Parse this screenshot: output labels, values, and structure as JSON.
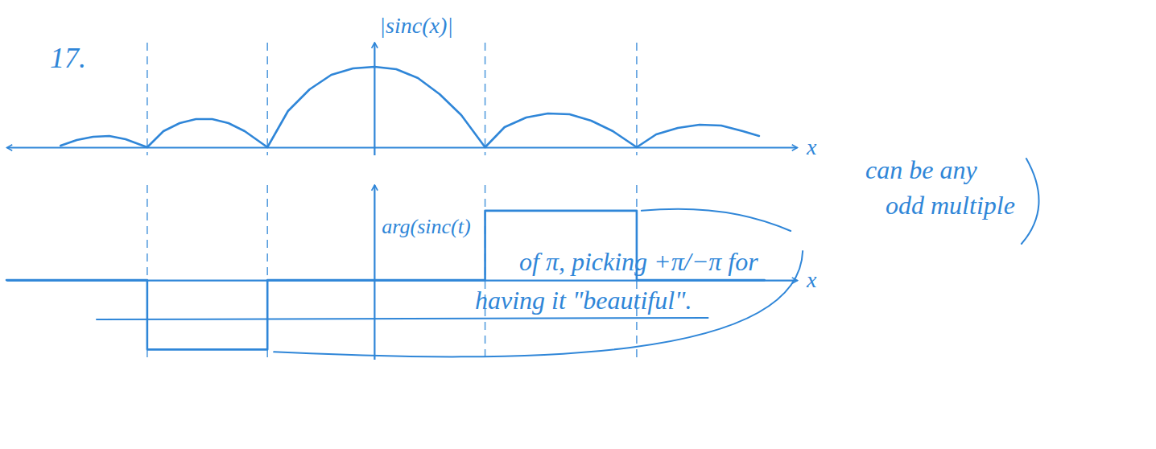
{
  "chart_data": [
    {
      "type": "line",
      "y_label": "|sinc(x)|",
      "x_label": "x",
      "annotations": [
        "17."
      ],
      "x": [
        -2.9,
        -2.75,
        -2.6,
        -2.45,
        -2.3,
        -2.1,
        -1.95,
        -1.8,
        -1.65,
        -1.5,
        -1.35,
        -1.2,
        -0.99,
        -0.8,
        -0.6,
        -0.4,
        -0.2,
        0,
        0.2,
        0.4,
        0.6,
        0.8,
        1.02,
        1.2,
        1.4,
        1.6,
        1.8,
        2.0,
        2.2,
        2.42,
        2.6,
        2.8,
        3.0,
        3.2,
        3.4,
        3.55
      ],
      "values": [
        0.02,
        0.09,
        0.13,
        0.14,
        0.1,
        0,
        0.2,
        0.3,
        0.35,
        0.35,
        0.3,
        0.2,
        0,
        0.45,
        0.72,
        0.9,
        0.98,
        1.0,
        0.97,
        0.86,
        0.66,
        0.4,
        0,
        0.25,
        0.37,
        0.42,
        0.41,
        0.33,
        0.2,
        0,
        0.16,
        0.24,
        0.28,
        0.27,
        0.2,
        0.14
      ],
      "vlines": [
        -2.1,
        -0.99,
        1.02,
        2.42
      ],
      "xlim": [
        -3.4,
        3.9
      ],
      "ylim": [
        -0.1,
        1.3
      ],
      "xticks": [],
      "yticks": [],
      "tick_labels": false,
      "line_style": "solid",
      "color": "#2f86d8"
    },
    {
      "type": "line",
      "y_label": "arg(sinc(t)",
      "x_label": "x",
      "annotations": [
        "can be any",
        "odd multiple",
        "of π, picking +π/−π for",
        "having it \"beautiful\"."
      ],
      "x": [
        -3.4,
        -2.1,
        -0.99,
        1.02,
        2.42,
        3.6
      ],
      "values": [
        0,
        -3.14,
        0,
        3.14,
        0,
        0
      ],
      "vlines": [
        -2.1,
        -0.99,
        1.02,
        2.42
      ],
      "xlim": [
        -3.4,
        3.9
      ],
      "ylim": [
        -3.6,
        4.3
      ],
      "xticks": [],
      "yticks": [],
      "tick_labels": false,
      "line_style": "step",
      "color": "#2f86d8"
    }
  ]
}
